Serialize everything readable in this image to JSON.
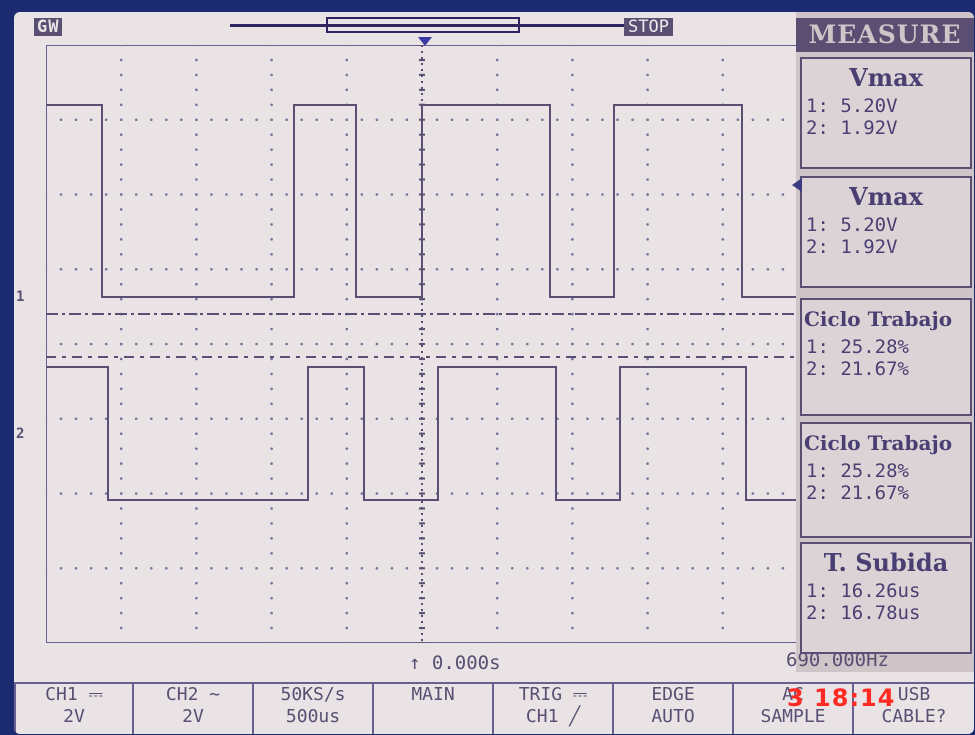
{
  "header": {
    "brand": "GW",
    "run_state": "STOP"
  },
  "channels": {
    "ch1_marker": "1",
    "ch2_marker": "2"
  },
  "measure": {
    "title": "MEASURE",
    "items": [
      {
        "name": "Vmax",
        "ch1": "1: 5.20V",
        "ch2": "2: 1.92V"
      },
      {
        "name": "Vmax",
        "ch1": "1: 5.20V",
        "ch2": "2: 1.92V"
      },
      {
        "name": "Ciclo Trabajo",
        "ch1": "1: 25.28%",
        "ch2": "2: 21.67%"
      },
      {
        "name": "Ciclo Trabajo",
        "ch1": "1: 25.28%",
        "ch2": "2: 21.67%"
      },
      {
        "name": "T. Subida",
        "ch1": "1: 16.26us",
        "ch2": "2: 16.78us"
      }
    ]
  },
  "readouts": {
    "trigger_time": "↑ 0.000s",
    "frequency": "690.000Hz"
  },
  "softkeys": [
    {
      "line1": "CH1 ⎓",
      "line2": "2V"
    },
    {
      "line1": "CH2 ∼",
      "line2": "2V"
    },
    {
      "line1": "50KS/s",
      "line2": "500us"
    },
    {
      "line1": "MAIN",
      "line2": ""
    },
    {
      "line1": "TRIG ⎓",
      "line2": "CH1 ╱"
    },
    {
      "line1": "EDGE",
      "line2": "AUTO"
    },
    {
      "line1": "AC",
      "line2": "SAMPLE"
    },
    {
      "line1": "USB",
      "line2": "CABLE?"
    }
  ],
  "photo_timestamp": "3 18:14",
  "colors": {
    "trace": "#5a4f72",
    "screen": "#e9e3e6",
    "frame": "#1c2a72",
    "timestamp": "#ff2a22"
  }
}
